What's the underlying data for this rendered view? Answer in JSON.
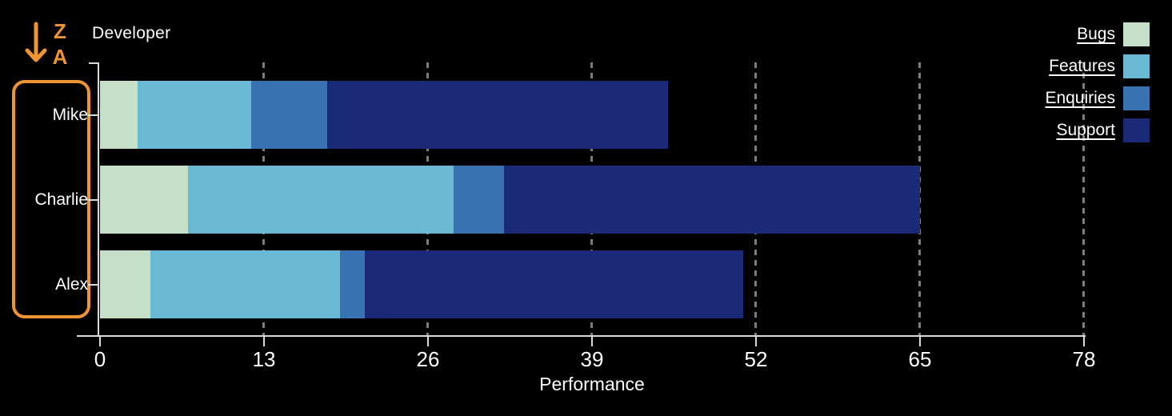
{
  "y_axis": {
    "title": "Developer",
    "sort": {
      "direction": "descending",
      "letter_top": "Z",
      "letter_bottom": "A"
    },
    "categories": [
      "Mike",
      "Charlie",
      "Alex"
    ]
  },
  "x_axis": {
    "title": "Performance",
    "tick_values": [
      0,
      13,
      26,
      39,
      52,
      65,
      78
    ],
    "min": 0,
    "max": 78
  },
  "legend": {
    "position": "top-right",
    "items": [
      {
        "label": "Bugs",
        "color": "#c5dfc9"
      },
      {
        "label": "Features",
        "color": "#69b9d5"
      },
      {
        "label": "Enquiries",
        "color": "#3872b2"
      },
      {
        "label": "Support",
        "color": "#1b2a78"
      }
    ]
  },
  "colors": {
    "background": "#000000",
    "text": "#ffffff",
    "axis": "#d9d9d9",
    "gridline": "#7d7d7d",
    "selection_accent": "#ee9434"
  },
  "chart_data": {
    "type": "bar",
    "orientation": "horizontal",
    "stacked": true,
    "categories": [
      "Mike",
      "Charlie",
      "Alex"
    ],
    "series": [
      {
        "name": "Bugs",
        "color": "#c5dfc9",
        "values": [
          3,
          7,
          4
        ]
      },
      {
        "name": "Features",
        "color": "#69b9d5",
        "values": [
          9,
          21,
          15
        ]
      },
      {
        "name": "Enquiries",
        "color": "#3872b2",
        "values": [
          6,
          4,
          2
        ]
      },
      {
        "name": "Support",
        "color": "#1b2a78",
        "values": [
          27,
          33,
          30
        ]
      }
    ],
    "totals": [
      45,
      65,
      51
    ],
    "xlabel": "Performance",
    "ylabel": "Developer",
    "xlim": [
      0,
      78
    ],
    "x_ticks": [
      0,
      13,
      26,
      39,
      52,
      65,
      78
    ],
    "grid": "dashed-vertical",
    "legend_position": "top-right",
    "sort": "ylabel Z to A descending"
  }
}
